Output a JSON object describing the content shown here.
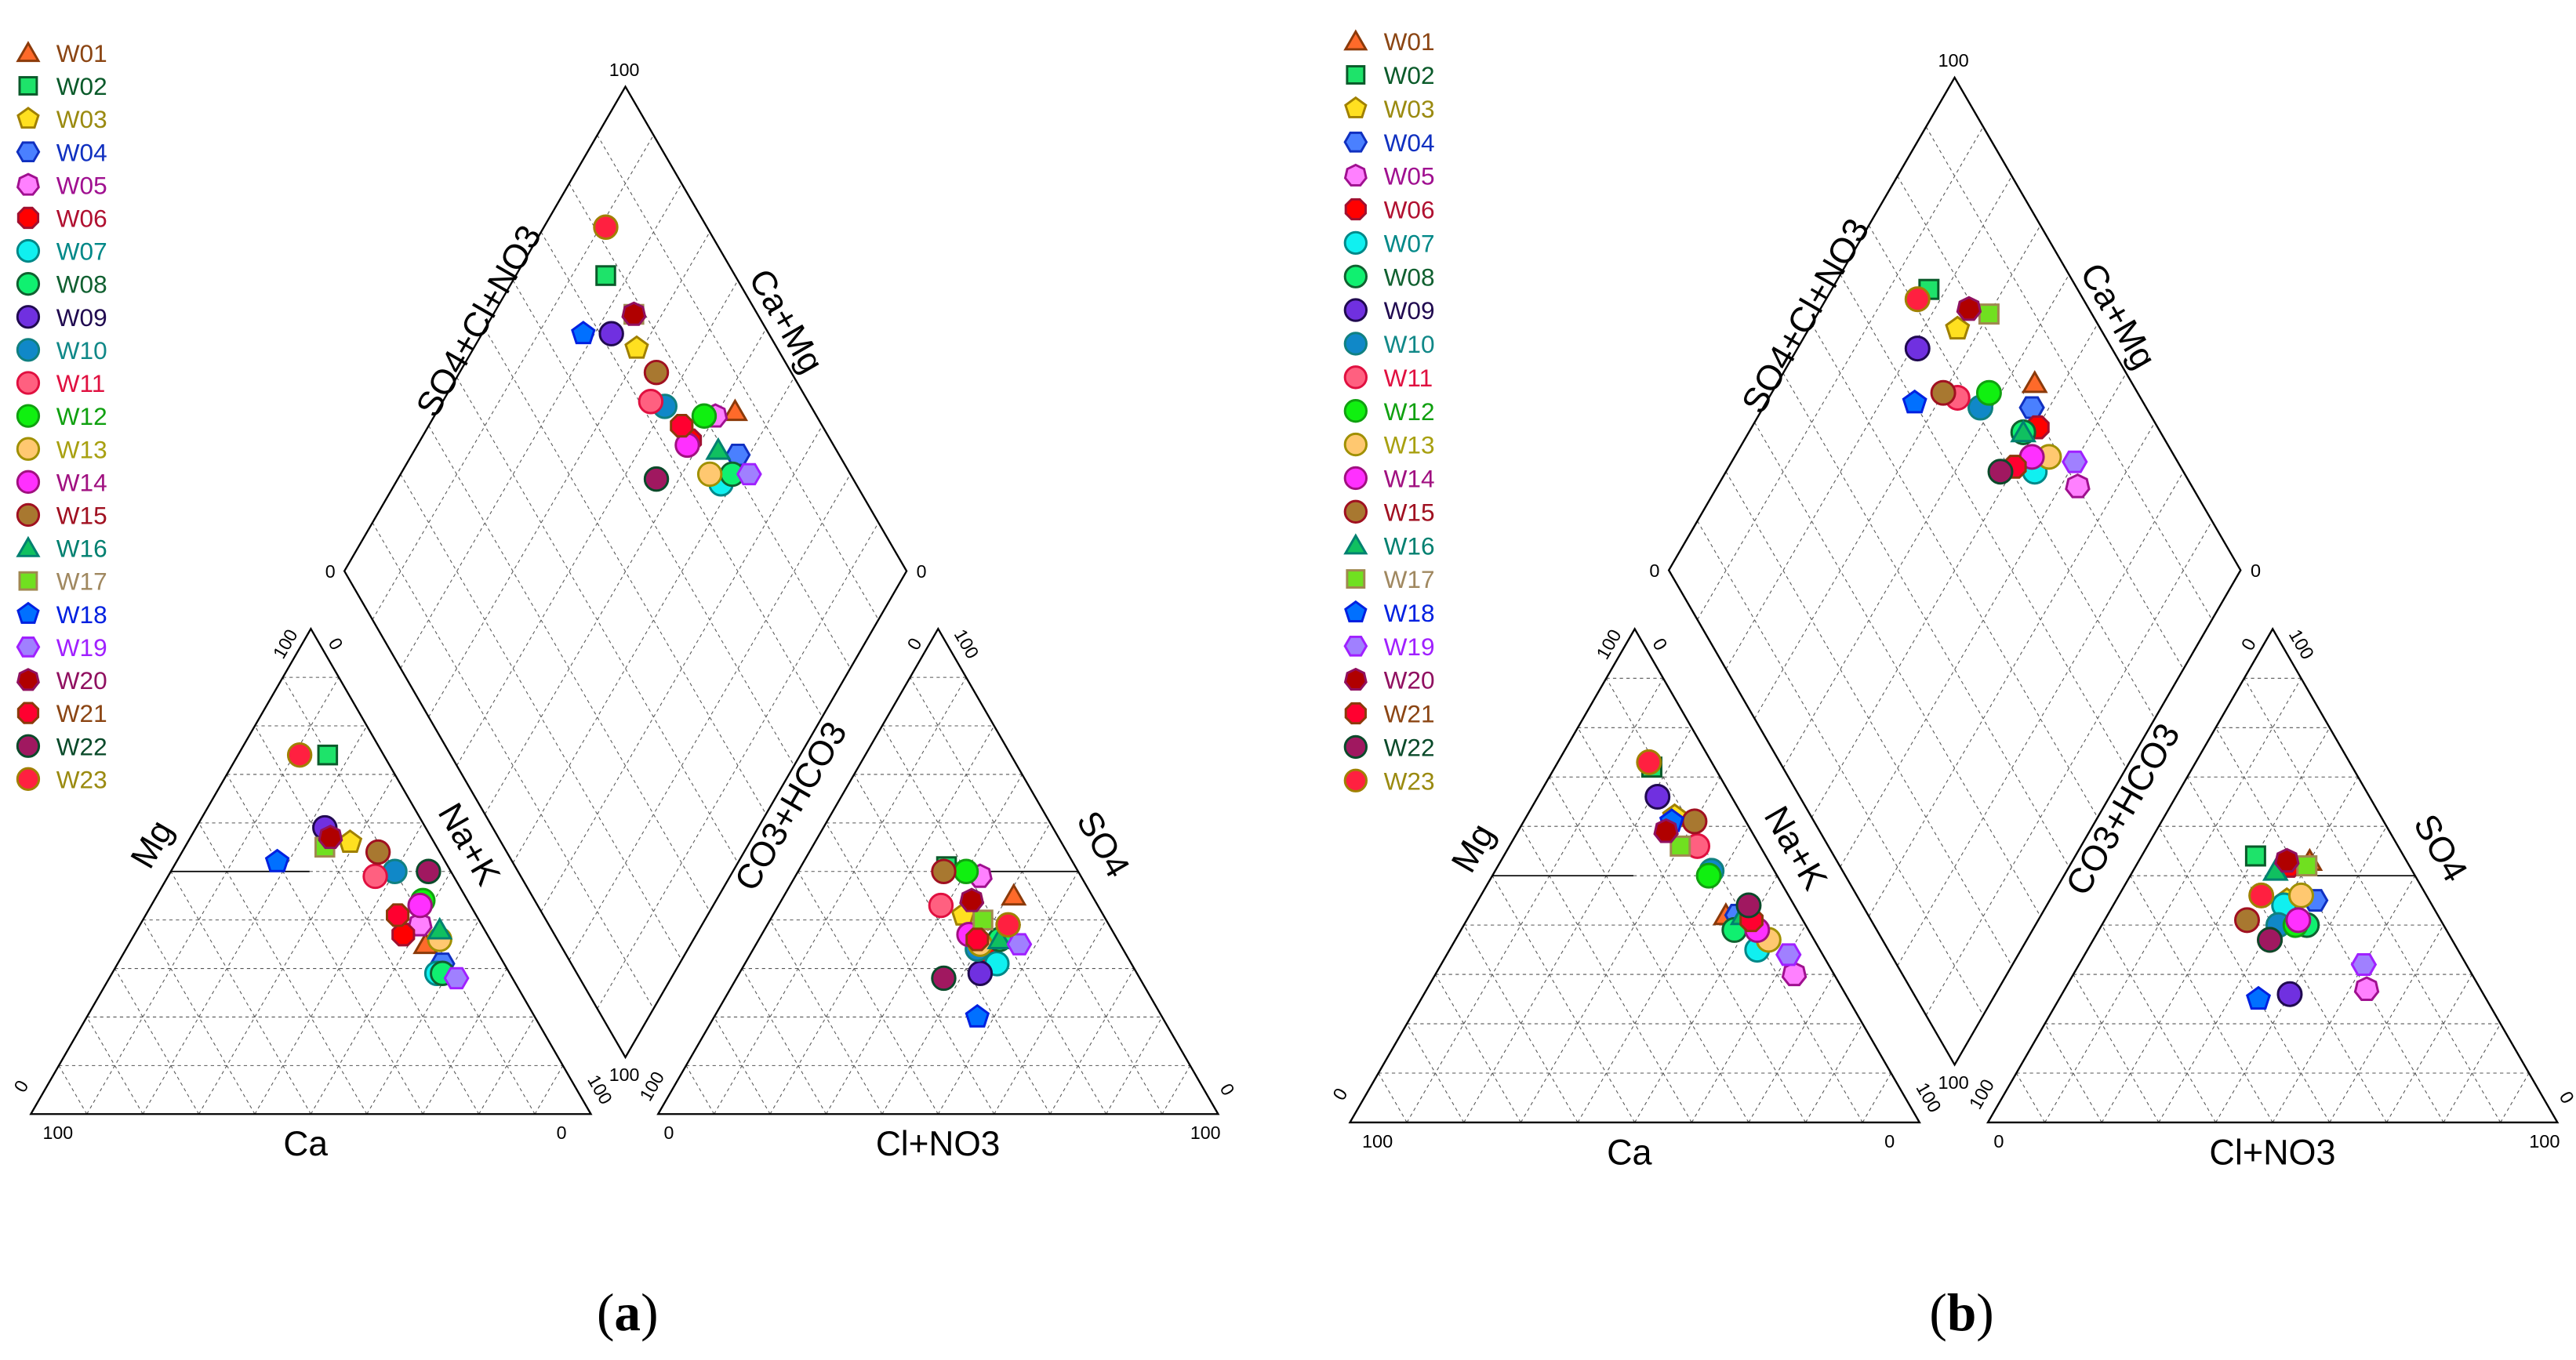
{
  "panels": [
    {
      "label": "a"
    },
    {
      "label": "b"
    }
  ],
  "wells": [
    {
      "name": "W01",
      "marker": "triangle",
      "fill": "#ff6a2a",
      "stroke": "#8b3a0a",
      "text": "#8b4513"
    },
    {
      "name": "W02",
      "marker": "square",
      "fill": "#1ee36a",
      "stroke": "#0a5a2a",
      "text": "#0a5a2a"
    },
    {
      "name": "W03",
      "marker": "pentagon",
      "fill": "#ffe020",
      "stroke": "#a08000",
      "text": "#9a8a10"
    },
    {
      "name": "W04",
      "marker": "hexagon",
      "fill": "#4a80ff",
      "stroke": "#1030c0",
      "text": "#1030c0"
    },
    {
      "name": "W05",
      "marker": "heptagon",
      "fill": "#ff80ff",
      "stroke": "#a01090",
      "text": "#a01090"
    },
    {
      "name": "W06",
      "marker": "octagon",
      "fill": "#ff0000",
      "stroke": "#a01030",
      "text": "#b01030"
    },
    {
      "name": "W07",
      "marker": "circle",
      "fill": "#10f0f0",
      "stroke": "#008888",
      "text": "#008888"
    },
    {
      "name": "W08",
      "marker": "circle",
      "fill": "#10f070",
      "stroke": "#106030",
      "text": "#106030"
    },
    {
      "name": "W09",
      "marker": "circle",
      "fill": "#7030e0",
      "stroke": "#200a50",
      "text": "#200a50"
    },
    {
      "name": "W10",
      "marker": "circle",
      "fill": "#1088c8",
      "stroke": "#108080",
      "text": "#108888"
    },
    {
      "name": "W11",
      "marker": "circle",
      "fill": "#ff6080",
      "stroke": "#e01040",
      "text": "#e01040"
    },
    {
      "name": "W12",
      "marker": "circle",
      "fill": "#10f010",
      "stroke": "#10a010",
      "text": "#10a010"
    },
    {
      "name": "W13",
      "marker": "circle",
      "fill": "#ffc870",
      "stroke": "#a09000",
      "text": "#a8a010"
    },
    {
      "name": "W14",
      "marker": "circle",
      "fill": "#ff30ff",
      "stroke": "#a01080",
      "text": "#a01080"
    },
    {
      "name": "W15",
      "marker": "circle",
      "fill": "#a87830",
      "stroke": "#a01020",
      "text": "#a01020"
    },
    {
      "name": "W16",
      "marker": "triangle",
      "fill": "#10c060",
      "stroke": "#008070",
      "text": "#008070"
    },
    {
      "name": "W17",
      "marker": "square",
      "fill": "#70e020",
      "stroke": "#a08850",
      "text": "#a08860"
    },
    {
      "name": "W18",
      "marker": "pentagon",
      "fill": "#0070ff",
      "stroke": "#0020e0",
      "text": "#0020e0"
    },
    {
      "name": "W19",
      "marker": "hexagon",
      "fill": "#a080ff",
      "stroke": "#a020ff",
      "text": "#a020ff"
    },
    {
      "name": "W20",
      "marker": "heptagon",
      "fill": "#b00000",
      "stroke": "#901060",
      "text": "#901060"
    },
    {
      "name": "W21",
      "marker": "octagon",
      "fill": "#ff0030",
      "stroke": "#8b3a0a",
      "text": "#8b4513"
    },
    {
      "name": "W22",
      "marker": "circle",
      "fill": "#a01860",
      "stroke": "#0a4a2a",
      "text": "#0a4a2a"
    },
    {
      "name": "W23",
      "marker": "circle",
      "fill": "#ff2040",
      "stroke": "#a08000",
      "text": "#9a8a10"
    }
  ],
  "chart_data": [
    {
      "type": "scatter",
      "subtype": "piper-ternary",
      "panel": "a",
      "labels": {
        "cation": {
          "bottom": "Ca",
          "left": "Mg",
          "right": "Na+K"
        },
        "anion": {
          "bottom": "Cl+NO3",
          "left": "CO3+HCO3",
          "right": "SO4"
        },
        "diamond": {
          "left": "SO4+Cl+NO3",
          "right": "Ca+Mg"
        }
      },
      "tick_min": "0",
      "tick_max": "100",
      "range": [
        0,
        100
      ],
      "grid": true,
      "grid_interval": 10,
      "samples": [
        {
          "well": "W01",
          "Ca": 12,
          "Mg": 35,
          "NaK": 53,
          "HCO3": 14,
          "SO4": 45,
          "Cl": 41
        },
        {
          "well": "W02",
          "Ca": 10,
          "Mg": 74,
          "NaK": 16,
          "HCO3": 23,
          "SO4": 51,
          "Cl": 26
        },
        {
          "well": "W03",
          "Ca": 15,
          "Mg": 56,
          "NaK": 29,
          "HCO3": 25,
          "SO4": 41,
          "Cl": 34
        },
        {
          "well": "W04",
          "Ca": 11,
          "Mg": 31,
          "NaK": 58,
          "HCO3": 18,
          "SO4": 39,
          "Cl": 43
        },
        {
          "well": "W05",
          "Ca": 11,
          "Mg": 39,
          "NaK": 50,
          "HCO3": 18,
          "SO4": 49,
          "Cl": 33
        },
        {
          "well": "W06",
          "Ca": 15,
          "Mg": 37,
          "NaK": 48,
          "HCO3": 25,
          "SO4": 33,
          "Cl": 42
        },
        {
          "well": "W07",
          "Ca": 13,
          "Mg": 29,
          "NaK": 58,
          "HCO3": 24,
          "SO4": 31,
          "Cl": 45
        },
        {
          "well": "W08",
          "Ca": 12,
          "Mg": 29,
          "NaK": 59,
          "HCO3": 21,
          "SO4": 36,
          "Cl": 43
        },
        {
          "well": "W09",
          "Ca": 18,
          "Mg": 59,
          "NaK": 23,
          "HCO3": 28,
          "SO4": 29,
          "Cl": 43
        },
        {
          "well": "W10",
          "Ca": 10,
          "Mg": 50,
          "NaK": 40,
          "HCO3": 26,
          "SO4": 34,
          "Cl": 40
        },
        {
          "well": "W11",
          "Ca": 14,
          "Mg": 49,
          "NaK": 37,
          "HCO3": 28,
          "SO4": 43,
          "Cl": 29
        },
        {
          "well": "W12",
          "Ca": 8,
          "Mg": 44,
          "NaK": 48,
          "HCO3": 20,
          "SO4": 50,
          "Cl": 30
        },
        {
          "well": "W13",
          "Ca": 9,
          "Mg": 36,
          "NaK": 55,
          "HCO3": 25,
          "SO4": 35,
          "Cl": 40
        },
        {
          "well": "W14",
          "Ca": 9,
          "Mg": 43,
          "NaK": 48,
          "HCO3": 26,
          "SO4": 37,
          "Cl": 37
        },
        {
          "well": "W15",
          "Ca": 11,
          "Mg": 54,
          "NaK": 35,
          "HCO3": 24,
          "SO4": 50,
          "Cl": 26
        },
        {
          "well": "W16",
          "Ca": 8,
          "Mg": 38,
          "NaK": 54,
          "HCO3": 21,
          "SO4": 36,
          "Cl": 43
        },
        {
          "well": "W17",
          "Ca": 20,
          "Mg": 55,
          "NaK": 25,
          "HCO3": 22,
          "SO4": 40,
          "Cl": 38
        },
        {
          "well": "W18",
          "Ca": 30,
          "Mg": 52,
          "NaK": 18,
          "HCO3": 33,
          "SO4": 20,
          "Cl": 47
        },
        {
          "well": "W19",
          "Ca": 10,
          "Mg": 28,
          "NaK": 62,
          "HCO3": 18,
          "SO4": 35,
          "Cl": 47
        },
        {
          "well": "W20",
          "Ca": 18,
          "Mg": 57,
          "NaK": 25,
          "HCO3": 22,
          "SO4": 44,
          "Cl": 34
        },
        {
          "well": "W21",
          "Ca": 14,
          "Mg": 41,
          "NaK": 45,
          "HCO3": 25,
          "SO4": 36,
          "Cl": 39
        },
        {
          "well": "W22",
          "Ca": 4,
          "Mg": 50,
          "NaK": 46,
          "HCO3": 35,
          "SO4": 28,
          "Cl": 37
        },
        {
          "well": "W23",
          "Ca": 15,
          "Mg": 74,
          "NaK": 11,
          "HCO3": 18,
          "SO4": 39,
          "Cl": 43
        }
      ]
    },
    {
      "type": "scatter",
      "subtype": "piper-ternary",
      "panel": "b",
      "labels": {
        "cation": {
          "bottom": "Ca",
          "left": "Mg",
          "right": "Na+K"
        },
        "anion": {
          "bottom": "Cl+NO3",
          "left": "CO3+HCO3",
          "right": "SO4"
        },
        "diamond": {
          "left": "SO4+Cl+NO3",
          "right": "Ca+Mg"
        }
      },
      "tick_min": "0",
      "tick_max": "100",
      "range": [
        0,
        100
      ],
      "grid": true,
      "grid_interval": 10,
      "samples": [
        {
          "well": "W01",
          "Ca": 13,
          "Mg": 42,
          "NaK": 45,
          "HCO3": 17,
          "SO4": 53,
          "Cl": 30
        },
        {
          "well": "W02",
          "Ca": 11,
          "Mg": 72,
          "NaK": 17,
          "HCO3": 26,
          "SO4": 54,
          "Cl": 20
        },
        {
          "well": "W03",
          "Ca": 12,
          "Mg": 62,
          "NaK": 26,
          "HCO3": 25,
          "SO4": 45,
          "Cl": 30
        },
        {
          "well": "W04",
          "Ca": 11,
          "Mg": 42,
          "NaK": 47,
          "HCO3": 20,
          "SO4": 45,
          "Cl": 35
        },
        {
          "well": "W05",
          "Ca": 7,
          "Mg": 30,
          "NaK": 63,
          "HCO3": 20,
          "SO4": 27,
          "Cl": 53
        },
        {
          "well": "W06",
          "Ca": 9,
          "Mg": 41,
          "NaK": 50,
          "HCO3": 21,
          "SO4": 52,
          "Cl": 27
        },
        {
          "well": "W07",
          "Ca": 11,
          "Mg": 35,
          "NaK": 54,
          "HCO3": 26,
          "SO4": 44,
          "Cl": 30
        },
        {
          "well": "W08",
          "Ca": 13,
          "Mg": 39,
          "NaK": 48,
          "HCO3": 24,
          "SO4": 40,
          "Cl": 36
        },
        {
          "well": "W09",
          "Ca": 13,
          "Mg": 66,
          "NaK": 21,
          "HCO3": 34,
          "SO4": 26,
          "Cl": 40
        },
        {
          "well": "W10",
          "Ca": 11,
          "Mg": 51,
          "NaK": 38,
          "HCO3": 29,
          "SO4": 40,
          "Cl": 31
        },
        {
          "well": "W11",
          "Ca": 11,
          "Mg": 56,
          "NaK": 33,
          "HCO3": 32,
          "SO4": 37,
          "Cl": 31
        },
        {
          "well": "W12",
          "Ca": 12,
          "Mg": 50,
          "NaK": 38,
          "HCO3": 26,
          "SO4": 40,
          "Cl": 34
        },
        {
          "well": "W13",
          "Ca": 8,
          "Mg": 37,
          "NaK": 55,
          "HCO3": 22,
          "SO4": 46,
          "Cl": 32
        },
        {
          "well": "W14",
          "Ca": 9,
          "Mg": 39,
          "NaK": 52,
          "HCO3": 25,
          "SO4": 41,
          "Cl": 34
        },
        {
          "well": "W15",
          "Ca": 9,
          "Mg": 61,
          "NaK": 30,
          "HCO3": 34,
          "SO4": 41,
          "Cl": 25
        },
        {
          "well": "W16",
          "Ca": 10,
          "Mg": 42,
          "NaK": 48,
          "HCO3": 24,
          "SO4": 51,
          "Cl": 25
        },
        {
          "well": "W17",
          "Ca": 14,
          "Mg": 56,
          "NaK": 30,
          "HCO3": 18,
          "SO4": 52,
          "Cl": 30
        },
        {
          "well": "W18",
          "Ca": 13,
          "Mg": 61,
          "NaK": 26,
          "HCO3": 40,
          "SO4": 25,
          "Cl": 35
        },
        {
          "well": "W19",
          "Ca": 6,
          "Mg": 34,
          "NaK": 60,
          "HCO3": 18,
          "SO4": 32,
          "Cl": 50
        },
        {
          "well": "W20",
          "Ca": 15,
          "Mg": 59,
          "NaK": 26,
          "HCO3": 21,
          "SO4": 53,
          "Cl": 26
        },
        {
          "well": "W21",
          "Ca": 9,
          "Mg": 41,
          "NaK": 50,
          "HCO3": 29,
          "SO4": 46,
          "Cl": 25
        },
        {
          "well": "W22",
          "Ca": 8,
          "Mg": 44,
          "NaK": 48,
          "HCO3": 32,
          "SO4": 37,
          "Cl": 31
        },
        {
          "well": "W23",
          "Ca": 11,
          "Mg": 73,
          "NaK": 16,
          "HCO3": 29,
          "SO4": 46,
          "Cl": 25
        }
      ]
    }
  ]
}
